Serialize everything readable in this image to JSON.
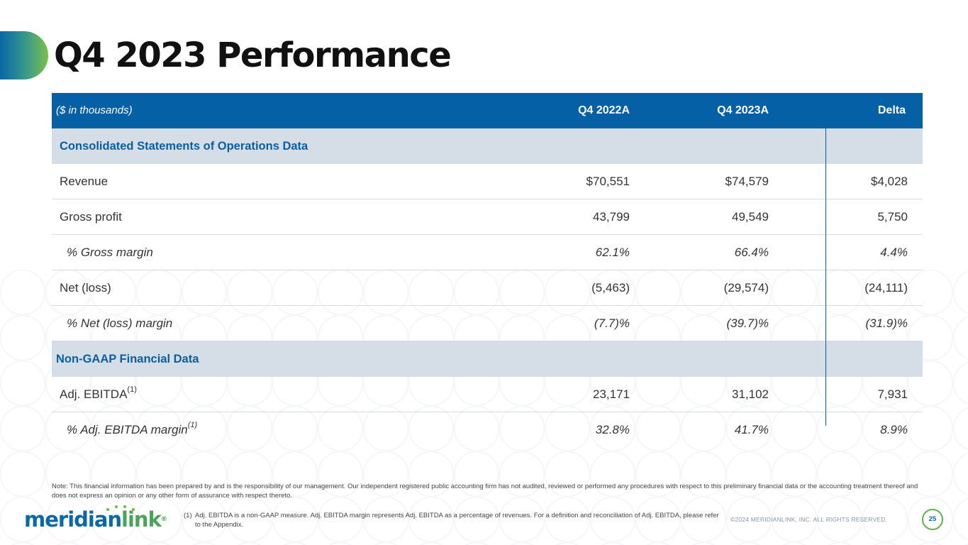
{
  "slide": {
    "title": "Q4 2023 Performance"
  },
  "table": {
    "header": {
      "unit_note": "($ in thousands)",
      "col1": "Q4 2022A",
      "col2": "Q4 2023A",
      "col3": "Delta"
    },
    "section1": "Consolidated Statements of Operations Data",
    "rows1": [
      {
        "label": "Revenue",
        "v1": "$70,551",
        "v2": "$74,579",
        "v3": "$4,028"
      },
      {
        "label": "Gross profit",
        "v1": "43,799",
        "v2": "49,549",
        "v3": "5,750"
      },
      {
        "label": "% Gross margin",
        "v1": "62.1%",
        "v2": "66.4%",
        "v3": "4.4%"
      },
      {
        "label": "Net (loss)",
        "v1": "(5,463)",
        "v2": "(29,574)",
        "v3": "(24,111)"
      },
      {
        "label": "% Net (loss) margin",
        "v1": "(7.7)%",
        "v2": "(39.7)%",
        "v3": "(31.9)%"
      }
    ],
    "section2": "Non-GAAP Financial Data",
    "rows2": [
      {
        "label": "Adj. EBITDA",
        "sup": "(1)",
        "v1": "23,171",
        "v2": "31,102",
        "v3": "7,931"
      },
      {
        "label": "% Adj. EBITDA margin",
        "sup": "(1)",
        "v1": "32.8%",
        "v2": "41.7%",
        "v3": "8.9%"
      }
    ]
  },
  "note": "Note: This financial information has been prepared by and is the responsibility of our management. Our independent registered public accounting firm has not audited, reviewed or performed any procedures with respect to this preliminary financial data or the accounting treatment thereof and does not express an opinion or any other form of assurance with respect thereto.",
  "footnote": {
    "num": "(1)",
    "text": "Adj. EBITDA is a non-GAAP measure. Adj. EBITDA margin represents Adj. EBITDA as a percentage of revenues. For a definition and reconciliation of Adj. EBITDA, please refer to the Appendix."
  },
  "footer": {
    "logo_part1": "meridian",
    "logo_part2": "link",
    "logo_trademark": "®",
    "copyright": "©2024 MERIDIANLINK, INC. ALL RIGHTS RESERVED.",
    "page_number": "25"
  },
  "colors": {
    "header_blue": "#0560a5",
    "section_gray": "#d5dee6",
    "brand_green": "#5fb14a"
  }
}
